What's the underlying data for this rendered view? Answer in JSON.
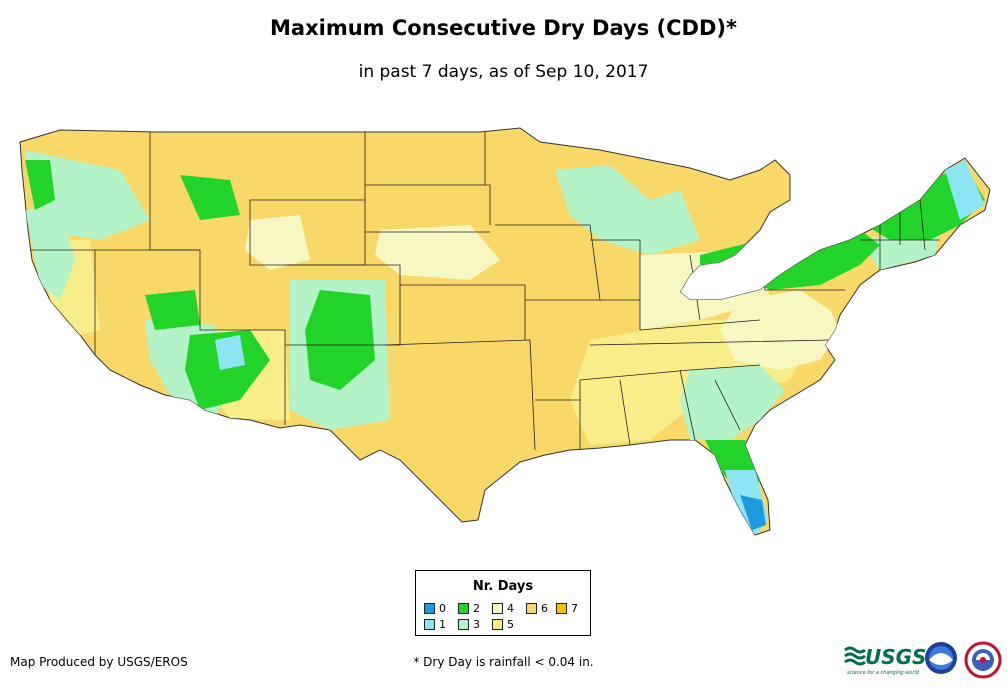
{
  "title": "Maximum Consecutive Dry Days (CDD)*",
  "subtitle": "in past 7 days, as of Sep 10, 2017",
  "legend": {
    "title": "Nr. Days",
    "items": [
      {
        "label": "0",
        "color": "#1e9be0"
      },
      {
        "label": "1",
        "color": "#8de5f3"
      },
      {
        "label": "2",
        "color": "#22d32a"
      },
      {
        "label": "3",
        "color": "#b4f2c8"
      },
      {
        "label": "4",
        "color": "#f7f7c2"
      },
      {
        "label": "5",
        "color": "#f7ee8a"
      },
      {
        "label": "6",
        "color": "#f8d868"
      },
      {
        "label": "7",
        "color": "#f5c400"
      }
    ]
  },
  "credit": "Map Produced by USGS/EROS",
  "footnote": "* Dry Day is rainfall < 0.04 in.",
  "logos": {
    "usgs": "USGS",
    "usgs_tagline": "science for a changing world",
    "noaa_icon": "noaa-logo-icon",
    "nws_icon": "national-weather-service-logo-icon"
  }
}
